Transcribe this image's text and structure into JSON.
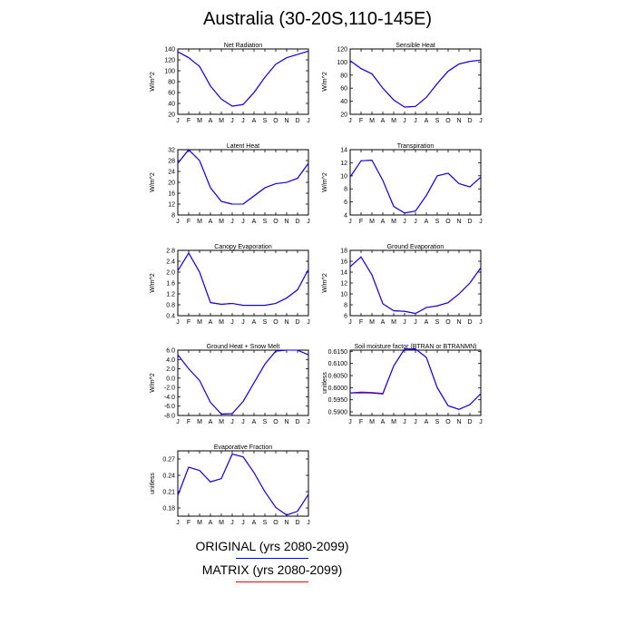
{
  "title": "Australia (30-20S,110-145E)",
  "legend": {
    "line1": "ORIGINAL (yrs 2080-2099)",
    "line1_color": "#0000ff",
    "line2": "MATRIX (yrs 2080-2099)",
    "line2_color": "#ff0000"
  },
  "months": [
    "J",
    "F",
    "M",
    "A",
    "M",
    "J",
    "J",
    "A",
    "S",
    "O",
    "N",
    "D",
    "J"
  ],
  "chart_data": [
    {
      "type": "line",
      "title": "Net Radiation",
      "ylabel": "W/m^2",
      "ylim": [
        20,
        140
      ],
      "yticks": [
        "20",
        "40",
        "60",
        "80",
        "100",
        "120",
        "140"
      ],
      "ytick_values": [
        20,
        40,
        60,
        80,
        100,
        120,
        140
      ],
      "categories": [
        "J",
        "F",
        "M",
        "A",
        "M",
        "J",
        "J",
        "A",
        "S",
        "O",
        "N",
        "D",
        "J"
      ],
      "series": [
        {
          "color": "#0000ff",
          "values": [
            135,
            124,
            108,
            72,
            48,
            35,
            38,
            60,
            88,
            112,
            124,
            130,
            136
          ]
        },
        {
          "color": "#ff0000",
          "values": [
            135,
            124,
            108,
            72,
            48,
            35,
            38,
            60,
            88,
            112,
            124,
            130,
            136
          ]
        }
      ]
    },
    {
      "type": "line",
      "title": "Sensible Heat",
      "ylabel": "W/m^2",
      "ylim": [
        20,
        120
      ],
      "yticks": [
        "20",
        "40",
        "60",
        "80",
        "100",
        "120"
      ],
      "ytick_values": [
        20,
        40,
        60,
        80,
        100,
        120
      ],
      "categories": [
        "J",
        "F",
        "M",
        "A",
        "M",
        "J",
        "J",
        "A",
        "S",
        "O",
        "N",
        "D",
        "J"
      ],
      "series": [
        {
          "color": "#0000ff",
          "values": [
            102,
            90,
            82,
            60,
            42,
            31,
            32,
            46,
            67,
            86,
            97,
            101,
            103
          ]
        },
        {
          "color": "#ff0000",
          "values": [
            102,
            90,
            82,
            60,
            42,
            31,
            32,
            46,
            67,
            86,
            97,
            101,
            103
          ]
        }
      ]
    },
    {
      "type": "line",
      "title": "Latent Heat",
      "ylabel": "W/m^2",
      "ylim": [
        8,
        32
      ],
      "yticks": [
        "8",
        "12",
        "16",
        "20",
        "24",
        "28",
        "32"
      ],
      "ytick_values": [
        8,
        12,
        16,
        20,
        24,
        28,
        32
      ],
      "categories": [
        "J",
        "F",
        "M",
        "A",
        "M",
        "J",
        "J",
        "A",
        "S",
        "O",
        "N",
        "D",
        "J"
      ],
      "series": [
        {
          "color": "#0000ff",
          "values": [
            27,
            32,
            28,
            18,
            13,
            12,
            12,
            15,
            18,
            19.5,
            20,
            21.5,
            27
          ]
        },
        {
          "color": "#ff0000",
          "values": [
            27,
            32,
            28,
            18,
            13,
            12,
            12,
            15,
            18,
            19.5,
            20,
            21.5,
            27
          ]
        }
      ]
    },
    {
      "type": "line",
      "title": "Transpiration",
      "ylabel": "W/m^2",
      "ylim": [
        4,
        14
      ],
      "yticks": [
        "4",
        "6",
        "8",
        "10",
        "12",
        "14"
      ],
      "ytick_values": [
        4,
        6,
        8,
        10,
        12,
        14
      ],
      "categories": [
        "J",
        "F",
        "M",
        "A",
        "M",
        "J",
        "J",
        "A",
        "S",
        "O",
        "N",
        "D",
        "J"
      ],
      "series": [
        {
          "color": "#0000ff",
          "values": [
            9.8,
            12.3,
            12.4,
            9.3,
            5.3,
            4.3,
            4.6,
            7.0,
            10.0,
            10.4,
            8.8,
            8.3,
            9.8
          ]
        },
        {
          "color": "#ff0000",
          "values": [
            9.8,
            12.3,
            12.4,
            9.3,
            5.3,
            4.3,
            4.6,
            7.0,
            10.0,
            10.4,
            8.8,
            8.3,
            9.8
          ]
        }
      ]
    },
    {
      "type": "line",
      "title": "Canopy Evaporation",
      "ylabel": "W/m^2",
      "ylim": [
        0.4,
        2.8
      ],
      "yticks": [
        "0.4",
        "0.8",
        "1.2",
        "1.6",
        "2.0",
        "2.4",
        "2.8"
      ],
      "ytick_values": [
        0.4,
        0.8,
        1.2,
        1.6,
        2.0,
        2.4,
        2.8
      ],
      "categories": [
        "J",
        "F",
        "M",
        "A",
        "M",
        "J",
        "J",
        "A",
        "S",
        "O",
        "N",
        "D",
        "J"
      ],
      "series": [
        {
          "color": "#0000ff",
          "values": [
            2.05,
            2.7,
            2.0,
            0.88,
            0.82,
            0.85,
            0.78,
            0.78,
            0.78,
            0.85,
            1.05,
            1.35,
            2.1
          ]
        },
        {
          "color": "#ff0000",
          "values": [
            2.05,
            2.7,
            2.0,
            0.88,
            0.82,
            0.85,
            0.78,
            0.78,
            0.78,
            0.85,
            1.05,
            1.35,
            2.1
          ]
        }
      ]
    },
    {
      "type": "line",
      "title": "Ground Evaporation",
      "ylabel": "W/m^2",
      "ylim": [
        6,
        18
      ],
      "yticks": [
        "6",
        "8",
        "10",
        "12",
        "14",
        "16",
        "18"
      ],
      "ytick_values": [
        6,
        8,
        10,
        12,
        14,
        16,
        18
      ],
      "categories": [
        "J",
        "F",
        "M",
        "A",
        "M",
        "J",
        "J",
        "A",
        "S",
        "O",
        "N",
        "D",
        "J"
      ],
      "series": [
        {
          "color": "#0000ff",
          "values": [
            15,
            16.8,
            13.5,
            8.2,
            6.9,
            6.8,
            6.4,
            7.5,
            7.8,
            8.4,
            10,
            12,
            14.8
          ]
        },
        {
          "color": "#ff0000",
          "values": [
            15,
            16.8,
            13.5,
            8.2,
            6.9,
            6.8,
            6.4,
            7.5,
            7.8,
            8.4,
            10,
            12,
            14.8
          ]
        }
      ]
    },
    {
      "type": "line",
      "title": "Ground Heat + Snow Melt",
      "ylabel": "W/m^2",
      "ylim": [
        -8,
        6
      ],
      "yticks": [
        "-8.0",
        "-6.0",
        "-4.0",
        "-2.0",
        "0.0",
        "2.0",
        "4.0",
        "6.0"
      ],
      "ytick_values": [
        -8,
        -6,
        -4,
        -2,
        0,
        2,
        4,
        6
      ],
      "categories": [
        "J",
        "F",
        "M",
        "A",
        "M",
        "J",
        "J",
        "A",
        "S",
        "O",
        "N",
        "D",
        "J"
      ],
      "series": [
        {
          "color": "#0000ff",
          "values": [
            5,
            2,
            -0.5,
            -5.2,
            -7.7,
            -7.6,
            -5,
            -1,
            3,
            5.8,
            6,
            6,
            5
          ]
        },
        {
          "color": "#ff0000",
          "values": [
            5,
            2,
            -0.5,
            -5.2,
            -7.7,
            -7.6,
            -5,
            -1,
            3,
            5.8,
            6,
            6,
            5
          ]
        }
      ]
    },
    {
      "type": "line",
      "title": "Soil moisture factor (BTRAN or BTRANMN)",
      "ylabel": "unitless",
      "ylim": [
        0.5885,
        0.6155
      ],
      "yticks": [
        "0.5900",
        "0.5950",
        "0.6000",
        "0.6050",
        "0.6100",
        "0.6150"
      ],
      "ytick_values": [
        0.59,
        0.595,
        0.6,
        0.605,
        0.61,
        0.615
      ],
      "categories": [
        "J",
        "F",
        "M",
        "A",
        "M",
        "J",
        "J",
        "A",
        "S",
        "O",
        "N",
        "D",
        "J"
      ],
      "series": [
        {
          "color": "#0000ff",
          "values": [
            0.5978,
            0.5979,
            0.5978,
            0.5974,
            0.609,
            0.616,
            0.616,
            0.6125,
            0.6,
            0.5925,
            0.591,
            0.593,
            0.5975
          ]
        },
        {
          "color": "#ff0000",
          "values": [
            0.5978,
            0.5982,
            0.598,
            0.5976,
            0.609,
            0.616,
            0.616,
            0.6125,
            0.6,
            0.5925,
            0.591,
            0.593,
            0.5975
          ]
        }
      ]
    },
    {
      "type": "line",
      "title": "Evaporative Fraction",
      "ylabel": "unitless",
      "ylim": [
        0.165,
        0.285
      ],
      "yticks": [
        "0.18",
        "0.21",
        "0.24",
        "0.27"
      ],
      "ytick_values": [
        0.18,
        0.21,
        0.24,
        0.27
      ],
      "categories": [
        "J",
        "F",
        "M",
        "A",
        "M",
        "J",
        "J",
        "A",
        "S",
        "O",
        "N",
        "D",
        "J"
      ],
      "series": [
        {
          "color": "#0000ff",
          "values": [
            0.203,
            0.255,
            0.249,
            0.228,
            0.234,
            0.279,
            0.274,
            0.245,
            0.21,
            0.181,
            0.167,
            0.174,
            0.205
          ]
        },
        {
          "color": "#ff0000",
          "values": [
            0.203,
            0.255,
            0.249,
            0.228,
            0.234,
            0.279,
            0.274,
            0.245,
            0.21,
            0.181,
            0.167,
            0.174,
            0.205
          ]
        }
      ]
    }
  ]
}
